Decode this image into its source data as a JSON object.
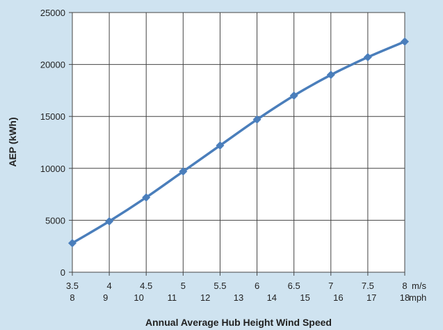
{
  "chart_data": {
    "type": "line",
    "title": "",
    "xlabel": "Annual Average Hub Height Wind Speed",
    "ylabel": "AEP (kWh)",
    "x_ms": [
      "3.5",
      "4",
      "4.5",
      "5",
      "5.5",
      "6",
      "6.5",
      "7",
      "7.5",
      "8"
    ],
    "x_mph": [
      "8",
      "9",
      "10",
      "11",
      "12",
      "13",
      "14",
      "15",
      "16",
      "17",
      "18"
    ],
    "x_unit_ms": "m/s",
    "x_unit_mph": "mph",
    "y_ticks": [
      "0",
      "5000",
      "10000",
      "15000",
      "20000",
      "25000"
    ],
    "ylim": [
      0,
      25000
    ],
    "xlim": [
      3.5,
      8
    ],
    "grid": true,
    "colors": {
      "series": "#4a7ebb",
      "background": "#cfe3f0",
      "plot": "#ffffff",
      "grid": "#444444"
    },
    "series": [
      {
        "x": [
          3.5,
          4,
          4.5,
          5,
          5.5,
          6,
          6.5,
          7,
          7.5,
          8
        ],
        "values": [
          2800,
          4900,
          7200,
          9700,
          12200,
          14700,
          17000,
          19000,
          20700,
          22200
        ]
      }
    ]
  }
}
